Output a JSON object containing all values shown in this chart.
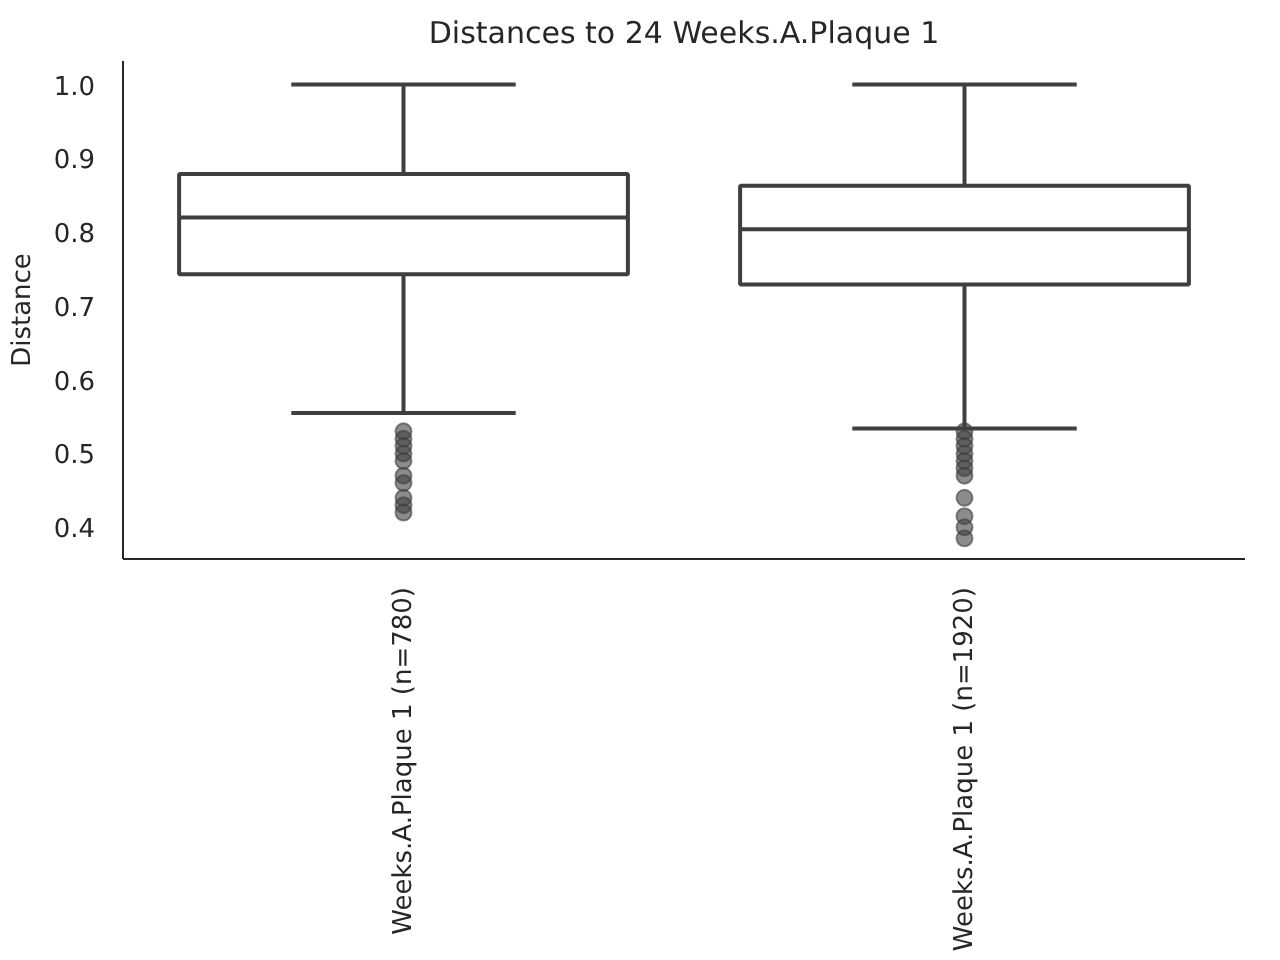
{
  "chart_data": {
    "type": "box",
    "title": "Distances to 24 Weeks.A.Plaque 1",
    "ylabel": "Distance",
    "categories": [
      "Weeks.A.Plaque 1 (n=780)",
      "Weeks.A.Plaque 1 (n=1920)"
    ],
    "boxes": [
      {
        "low": 0.555,
        "q1": 0.743,
        "median": 0.82,
        "q3": 0.879,
        "high": 1.0,
        "outliers": [
          0.53,
          0.52,
          0.51,
          0.5,
          0.49,
          0.47,
          0.46,
          0.44,
          0.43,
          0.42
        ]
      },
      {
        "low": 0.534,
        "q1": 0.729,
        "median": 0.804,
        "q3": 0.863,
        "high": 1.0,
        "outliers": [
          0.53,
          0.52,
          0.51,
          0.5,
          0.49,
          0.48,
          0.47,
          0.44,
          0.415,
          0.4,
          0.385
        ]
      }
    ],
    "ylim": [
      0.357,
      1.032
    ],
    "yticks": [
      0.4,
      0.5,
      0.6,
      0.7,
      0.8,
      0.9,
      {
        "value": 1,
        "label": "1.0"
      }
    ]
  }
}
